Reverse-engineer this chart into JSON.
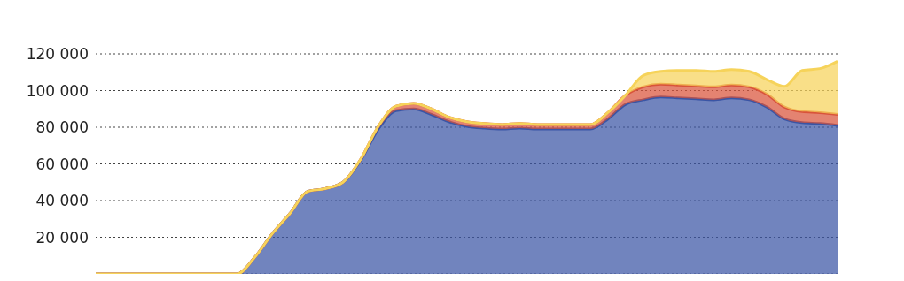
{
  "chart_data": {
    "type": "area",
    "stacked": true,
    "categories": [
      null,
      null,
      null,
      null,
      null,
      null,
      null,
      null,
      null,
      null,
      null,
      null,
      null,
      null,
      null,
      null,
      null,
      null,
      null,
      null,
      null,
      null,
      null,
      null,
      null,
      null,
      null,
      null,
      null,
      null,
      null,
      null,
      null,
      null,
      null,
      null,
      null,
      null,
      null,
      null,
      null,
      null,
      null
    ],
    "series": [
      {
        "color": "#3a55a5",
        "values": [
          0,
          0,
          0,
          0,
          0,
          0,
          0,
          0,
          0,
          9000,
          22000,
          33000,
          45000,
          46500,
          50000,
          62000,
          79000,
          89000,
          90000,
          87000,
          83000,
          80500,
          79500,
          79000,
          79500,
          79000,
          79000,
          79000,
          79000,
          84500,
          92500,
          95000,
          96500,
          96000,
          95500,
          95000,
          96000,
          95000,
          91000,
          84500,
          82500,
          82000,
          81000
        ]
      },
      {
        "color": "#d9533a",
        "values": [
          0,
          0,
          0,
          0,
          0,
          0,
          0,
          0,
          0,
          0,
          0,
          0,
          0,
          0,
          0,
          500,
          1500,
          2500,
          3000,
          3000,
          2500,
          2500,
          2500,
          2500,
          2500,
          2500,
          2500,
          2500,
          2500,
          3500,
          5000,
          7000,
          7000,
          7000,
          7000,
          7000,
          7000,
          7000,
          7000,
          6500,
          6000,
          6000,
          6000
        ]
      },
      {
        "color": "#f6d35a",
        "values": [
          0,
          0,
          0,
          0,
          0,
          0,
          0,
          0,
          0,
          0,
          0,
          0,
          0,
          0,
          0,
          0,
          0,
          0,
          0,
          0,
          0,
          0,
          0,
          0,
          0,
          0,
          0,
          0,
          0,
          0,
          0,
          6300,
          7000,
          8000,
          8500,
          8500,
          8500,
          8500,
          8000,
          11300,
          22500,
          24000,
          29000
        ]
      }
    ],
    "ylim": [
      0,
      120000
    ],
    "yticks": [
      {
        "value": 20000,
        "label": "20 000"
      },
      {
        "value": 40000,
        "label": "40 000"
      },
      {
        "value": 60000,
        "label": "60 000"
      },
      {
        "value": 80000,
        "label": "80 000"
      },
      {
        "value": 100000,
        "label": "100 000"
      },
      {
        "value": 120000,
        "label": "120 000"
      }
    ],
    "grid": "y",
    "tick_labels": "y"
  }
}
